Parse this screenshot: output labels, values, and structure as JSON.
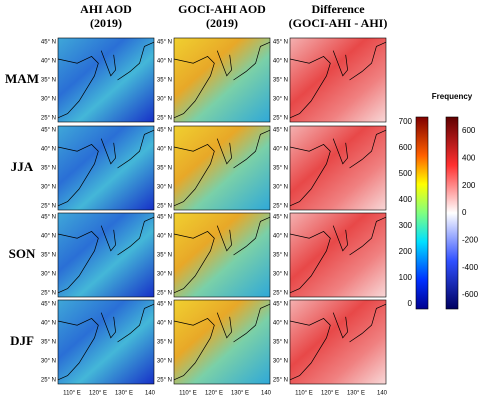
{
  "columns": [
    {
      "title": "AHI AOD",
      "subtitle": "(2019)"
    },
    {
      "title": "GOCI-AHI AOD",
      "subtitle": "(2019)"
    },
    {
      "title": "Difference",
      "subtitle": "(GOCI-AHI - AHI)"
    }
  ],
  "rows": [
    "MAM",
    "JJA",
    "SON",
    "DJF"
  ],
  "lat_ticks": [
    "45° N",
    "40° N",
    "35° N",
    "30° N",
    "25° N"
  ],
  "lon_ticks": [
    "110° E",
    "120° E",
    "130° E",
    "140"
  ],
  "colorbar_title": "Frequency",
  "colorbar_left_ticks": [
    "700",
    "600",
    "500",
    "400",
    "300",
    "200",
    "100",
    "0"
  ],
  "colorbar_right_ticks": [
    "600",
    "400",
    "200",
    "0",
    "-200",
    "-400",
    "-600"
  ]
}
